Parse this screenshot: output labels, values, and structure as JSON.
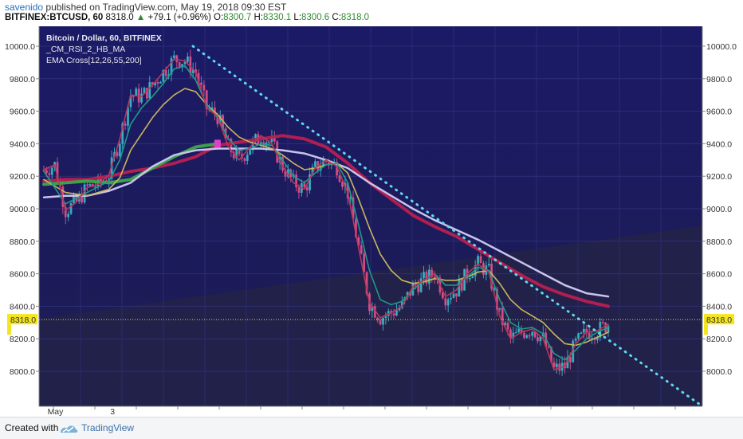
{
  "header": {
    "author": "savenido",
    "published_text": "published on TradingView.com, May 19, 2018 09:30 EST",
    "symbol": "BITFINEX:BTCUSD, 60",
    "last": "8318.0",
    "change": "+79.1 (+0.96%)",
    "o_label": "O:",
    "o_val": "8300.7",
    "h_label": "H:",
    "h_val": "8330.1",
    "l_label": "L:",
    "l_val": "8300.6",
    "c_label": "C:",
    "c_val": "8318.0"
  },
  "legend": {
    "line1": "Bitcoin / Dollar, 60, BITFINEX",
    "line2": "_CM_RSI_2_HB_MA",
    "line3": "EMA Cross[12,26,55,200]"
  },
  "price_tag": "8318.0",
  "footer": {
    "created": "Created with",
    "brand": "TradingView"
  },
  "colors": {
    "plot_bg": "#1c1b5e",
    "candle_pink": "#e0508a",
    "candle_cyan": "#38b8c8",
    "ema12": "#b8385a",
    "ema26": "#1f9a88",
    "ema55": "#c9b85a",
    "ema200": "#c8c4ec",
    "ma_green": "#3fa84a",
    "ma_red": "#b82050",
    "trendline": "#5fd8ec",
    "price_line": "#e8d85a",
    "tag_bg": "#f5e51c"
  },
  "chart_data": {
    "type": "candlestick",
    "y_ticks": [
      10000.0,
      9800.0,
      9600.0,
      9400.0,
      9200.0,
      9000.0,
      8800.0,
      8600.0,
      8400.0,
      8200.0,
      8000.0
    ],
    "y_tick_labels": [
      "10000.0",
      "9800.0",
      "9600.0",
      "9400.0",
      "9200.0",
      "9000.0",
      "8800.0",
      "8600.0",
      "8400.0",
      "8200.0",
      "8000.0"
    ],
    "ylim": [
      7880,
      10030
    ],
    "x_labels": [
      "May",
      "3"
    ],
    "x_label_bar": [
      8,
      39
    ],
    "bars": 360,
    "last_close": 8318.0,
    "ema12": [
      [
        0,
        9240
      ],
      [
        4,
        9270
      ],
      [
        8,
        8990
      ],
      [
        12,
        9040
      ],
      [
        16,
        9130
      ],
      [
        20,
        9150
      ],
      [
        24,
        9210
      ],
      [
        28,
        9430
      ],
      [
        32,
        9700
      ],
      [
        36,
        9690
      ],
      [
        40,
        9760
      ],
      [
        44,
        9840
      ],
      [
        48,
        9920
      ],
      [
        52,
        9910
      ],
      [
        56,
        9840
      ],
      [
        60,
        9620
      ],
      [
        64,
        9570
      ],
      [
        68,
        9380
      ],
      [
        72,
        9300
      ],
      [
        76,
        9380
      ],
      [
        80,
        9450
      ],
      [
        84,
        9400
      ],
      [
        88,
        9260
      ],
      [
        92,
        9160
      ],
      [
        96,
        9120
      ],
      [
        100,
        9250
      ],
      [
        104,
        9300
      ],
      [
        108,
        9260
      ],
      [
        112,
        9100
      ],
      [
        116,
        8760
      ],
      [
        120,
        8420
      ],
      [
        124,
        8330
      ],
      [
        128,
        8360
      ],
      [
        132,
        8400
      ],
      [
        136,
        8520
      ],
      [
        140,
        8560
      ],
      [
        144,
        8600
      ],
      [
        148,
        8460
      ],
      [
        152,
        8500
      ],
      [
        156,
        8600
      ],
      [
        160,
        8660
      ],
      [
        164,
        8610
      ],
      [
        168,
        8340
      ],
      [
        172,
        8200
      ],
      [
        176,
        8240
      ],
      [
        180,
        8260
      ],
      [
        184,
        8200
      ],
      [
        188,
        8010
      ],
      [
        192,
        8030
      ],
      [
        196,
        8170
      ],
      [
        200,
        8240
      ],
      [
        204,
        8250
      ],
      [
        208,
        8290
      ]
    ],
    "ema26": [
      [
        0,
        9230
      ],
      [
        8,
        9030
      ],
      [
        16,
        9100
      ],
      [
        24,
        9170
      ],
      [
        28,
        9300
      ],
      [
        32,
        9520
      ],
      [
        36,
        9620
      ],
      [
        40,
        9690
      ],
      [
        44,
        9770
      ],
      [
        48,
        9860
      ],
      [
        52,
        9880
      ],
      [
        56,
        9790
      ],
      [
        60,
        9640
      ],
      [
        64,
        9560
      ],
      [
        68,
        9430
      ],
      [
        72,
        9360
      ],
      [
        76,
        9370
      ],
      [
        80,
        9400
      ],
      [
        84,
        9390
      ],
      [
        88,
        9300
      ],
      [
        92,
        9200
      ],
      [
        96,
        9160
      ],
      [
        100,
        9220
      ],
      [
        104,
        9270
      ],
      [
        108,
        9280
      ],
      [
        112,
        9160
      ],
      [
        116,
        8900
      ],
      [
        120,
        8620
      ],
      [
        124,
        8440
      ],
      [
        128,
        8410
      ],
      [
        132,
        8430
      ],
      [
        136,
        8500
      ],
      [
        140,
        8560
      ],
      [
        144,
        8600
      ],
      [
        148,
        8530
      ],
      [
        152,
        8530
      ],
      [
        156,
        8580
      ],
      [
        160,
        8640
      ],
      [
        164,
        8620
      ],
      [
        168,
        8440
      ],
      [
        172,
        8300
      ],
      [
        176,
        8260
      ],
      [
        180,
        8270
      ],
      [
        184,
        8230
      ],
      [
        188,
        8110
      ],
      [
        192,
        8070
      ],
      [
        196,
        8130
      ],
      [
        200,
        8200
      ],
      [
        204,
        8240
      ],
      [
        208,
        8270
      ]
    ],
    "ema55": [
      [
        0,
        9180
      ],
      [
        8,
        9100
      ],
      [
        16,
        9080
      ],
      [
        24,
        9120
      ],
      [
        28,
        9190
      ],
      [
        32,
        9360
      ],
      [
        36,
        9460
      ],
      [
        40,
        9560
      ],
      [
        44,
        9640
      ],
      [
        48,
        9700
      ],
      [
        52,
        9740
      ],
      [
        56,
        9720
      ],
      [
        60,
        9640
      ],
      [
        64,
        9580
      ],
      [
        68,
        9500
      ],
      [
        72,
        9440
      ],
      [
        76,
        9410
      ],
      [
        80,
        9390
      ],
      [
        84,
        9370
      ],
      [
        88,
        9330
      ],
      [
        92,
        9280
      ],
      [
        96,
        9240
      ],
      [
        100,
        9250
      ],
      [
        104,
        9270
      ],
      [
        108,
        9280
      ],
      [
        112,
        9220
      ],
      [
        116,
        9060
      ],
      [
        120,
        8880
      ],
      [
        124,
        8720
      ],
      [
        128,
        8620
      ],
      [
        132,
        8560
      ],
      [
        136,
        8540
      ],
      [
        140,
        8550
      ],
      [
        144,
        8570
      ],
      [
        148,
        8560
      ],
      [
        152,
        8560
      ],
      [
        156,
        8580
      ],
      [
        160,
        8610
      ],
      [
        164,
        8620
      ],
      [
        168,
        8540
      ],
      [
        172,
        8440
      ],
      [
        176,
        8380
      ],
      [
        180,
        8340
      ],
      [
        184,
        8300
      ],
      [
        188,
        8230
      ],
      [
        192,
        8170
      ],
      [
        196,
        8160
      ],
      [
        200,
        8180
      ],
      [
        204,
        8210
      ],
      [
        208,
        8240
      ]
    ],
    "ema200": [
      [
        0,
        9070
      ],
      [
        8,
        9080
      ],
      [
        16,
        9080
      ],
      [
        24,
        9110
      ],
      [
        32,
        9160
      ],
      [
        40,
        9260
      ],
      [
        48,
        9330
      ],
      [
        56,
        9360
      ],
      [
        64,
        9370
      ],
      [
        72,
        9370
      ],
      [
        80,
        9370
      ],
      [
        88,
        9360
      ],
      [
        96,
        9340
      ],
      [
        104,
        9300
      ],
      [
        112,
        9250
      ],
      [
        120,
        9160
      ],
      [
        128,
        9080
      ],
      [
        136,
        9000
      ],
      [
        144,
        8930
      ],
      [
        152,
        8870
      ],
      [
        160,
        8810
      ],
      [
        168,
        8740
      ],
      [
        176,
        8670
      ],
      [
        184,
        8600
      ],
      [
        192,
        8530
      ],
      [
        200,
        8480
      ],
      [
        208,
        8460
      ]
    ],
    "ma_green": [
      [
        0,
        9150
      ],
      [
        8,
        9160
      ],
      [
        16,
        9170
      ],
      [
        24,
        9160
      ],
      [
        32,
        9180
      ],
      [
        40,
        9250
      ],
      [
        48,
        9320
      ],
      [
        56,
        9380
      ],
      [
        64,
        9400
      ]
    ],
    "ma_red": [
      [
        0,
        9170
      ],
      [
        8,
        9180
      ],
      [
        16,
        9180
      ],
      [
        24,
        9200
      ],
      [
        32,
        9230
      ],
      [
        40,
        9250
      ],
      [
        48,
        9280
      ],
      [
        56,
        9320
      ],
      [
        64,
        9390
      ],
      [
        72,
        9410
      ],
      [
        80,
        9430
      ],
      [
        88,
        9450
      ],
      [
        96,
        9430
      ],
      [
        104,
        9380
      ],
      [
        112,
        9280
      ],
      [
        120,
        9160
      ],
      [
        128,
        9060
      ],
      [
        136,
        8960
      ],
      [
        144,
        8890
      ],
      [
        152,
        8830
      ],
      [
        160,
        8750
      ],
      [
        168,
        8670
      ],
      [
        176,
        8590
      ],
      [
        184,
        8520
      ],
      [
        192,
        8470
      ],
      [
        200,
        8430
      ],
      [
        208,
        8400
      ]
    ],
    "trendline": [
      [
        52,
        10000
      ],
      [
        325,
        7880
      ]
    ],
    "candles_note": "approximate hourly candles following the EMA12 path"
  }
}
